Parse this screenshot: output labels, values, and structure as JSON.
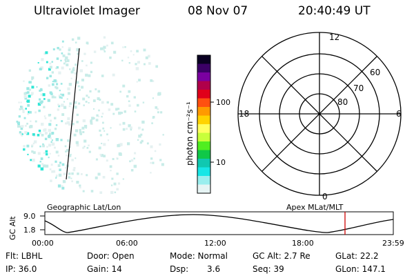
{
  "header": {
    "instrument": "Ultraviolet Imager",
    "date": "08 Nov 07",
    "time": "20:40:49 UT"
  },
  "colorbar": {
    "label": "photon cm⁻²s⁻¹",
    "ticks": [
      "100",
      "10"
    ],
    "colors": [
      "#0a0022",
      "#3b0066",
      "#7a00a0",
      "#b0004a",
      "#e0001a",
      "#ff5010",
      "#ff9a00",
      "#ffd300",
      "#ffff60",
      "#c8ff3a",
      "#50ee20",
      "#10c848",
      "#10c8b0",
      "#18e6e6",
      "#9aeeee",
      "#e6f4f4"
    ]
  },
  "polar_grid": {
    "mlt_labels": {
      "top": "12",
      "left": "18",
      "right": "6",
      "bottom": "0"
    },
    "lat_labels": [
      "60",
      "70",
      "80"
    ]
  },
  "timeline": {
    "left_label": "Geographic Lat/Lon",
    "right_label": "Apex MLat/MLT",
    "axis_label": "GC Alt",
    "y_ticks": [
      "9.0",
      "1.8"
    ],
    "x_ticks": [
      "00:00",
      "06:00",
      "12:00",
      "18:00",
      "23:59"
    ],
    "marker_color": "#cc0000"
  },
  "info": {
    "row1": {
      "filter": "Flt: LBHL",
      "door": "Door: Open",
      "mode": "Mode: Normal",
      "gc_alt": "GC Alt: 2.7 Re",
      "glat": "GLat:  22.2"
    },
    "row2": {
      "ip": "IP: 36.0",
      "gain": "Gain: 14",
      "dsp_label": "Dsp:",
      "dsp_value": "3.6",
      "seq": "Seq: 39",
      "glon": "GLon: 147.1"
    }
  }
}
